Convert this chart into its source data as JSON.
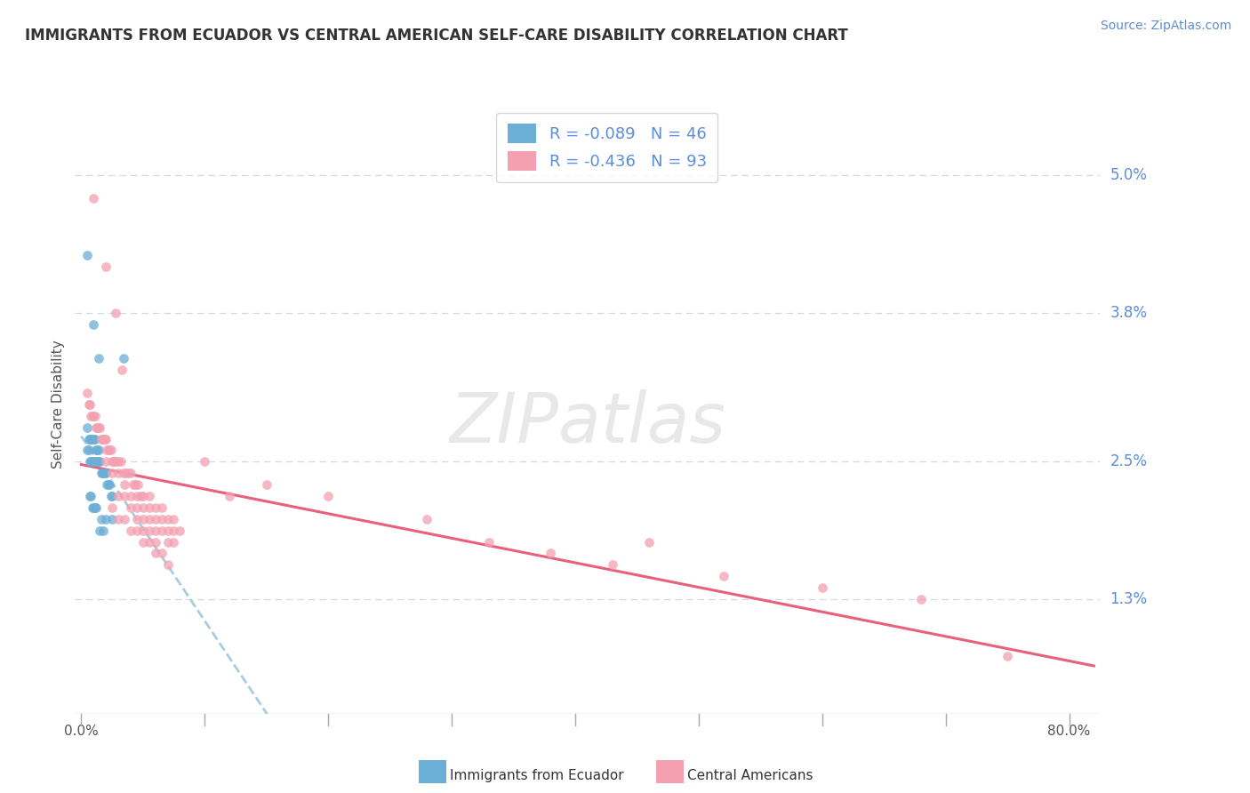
{
  "title": "IMMIGRANTS FROM ECUADOR VS CENTRAL AMERICAN SELF-CARE DISABILITY CORRELATION CHART",
  "source": "Source: ZipAtlas.com",
  "ylabel": "Self-Care Disability",
  "r1": -0.089,
  "n1": 46,
  "r2": -0.436,
  "n2": 93,
  "color1": "#6baed6",
  "color2": "#f4a0b0",
  "trendline1_color": "#a8cce0",
  "trendline2_color": "#e8607a",
  "ytick_vals": [
    0.013,
    0.025,
    0.038,
    0.05
  ],
  "ytick_labels": [
    "1.3%",
    "2.5%",
    "3.8%",
    "5.0%"
  ],
  "xlim": [
    -0.005,
    0.825
  ],
  "ylim": [
    0.003,
    0.057
  ],
  "xtick_vals": [
    0.0,
    0.1,
    0.2,
    0.3,
    0.4,
    0.5,
    0.6,
    0.7,
    0.8
  ],
  "xtick_label_show": [
    "0.0%",
    "",
    "",
    "",
    "",
    "",
    "",
    "",
    "80.0%"
  ],
  "grid_color": "#d0d8e8",
  "label1": "Immigrants from Ecuador",
  "label2": "Central Americans",
  "background_color": "#ffffff",
  "ecuador_points": [
    [
      0.005,
      0.043
    ],
    [
      0.01,
      0.037
    ],
    [
      0.014,
      0.034
    ],
    [
      0.034,
      0.034
    ],
    [
      0.005,
      0.028
    ],
    [
      0.006,
      0.027
    ],
    [
      0.007,
      0.027
    ],
    [
      0.008,
      0.027
    ],
    [
      0.009,
      0.027
    ],
    [
      0.01,
      0.027
    ],
    [
      0.011,
      0.027
    ],
    [
      0.012,
      0.026
    ],
    [
      0.013,
      0.026
    ],
    [
      0.014,
      0.026
    ],
    [
      0.005,
      0.026
    ],
    [
      0.006,
      0.026
    ],
    [
      0.007,
      0.025
    ],
    [
      0.008,
      0.025
    ],
    [
      0.009,
      0.025
    ],
    [
      0.01,
      0.025
    ],
    [
      0.011,
      0.025
    ],
    [
      0.012,
      0.025
    ],
    [
      0.013,
      0.025
    ],
    [
      0.014,
      0.025
    ],
    [
      0.015,
      0.025
    ],
    [
      0.016,
      0.024
    ],
    [
      0.017,
      0.024
    ],
    [
      0.018,
      0.024
    ],
    [
      0.019,
      0.024
    ],
    [
      0.02,
      0.024
    ],
    [
      0.021,
      0.023
    ],
    [
      0.022,
      0.023
    ],
    [
      0.023,
      0.023
    ],
    [
      0.024,
      0.022
    ],
    [
      0.025,
      0.022
    ],
    [
      0.007,
      0.022
    ],
    [
      0.008,
      0.022
    ],
    [
      0.009,
      0.021
    ],
    [
      0.01,
      0.021
    ],
    [
      0.011,
      0.021
    ],
    [
      0.012,
      0.021
    ],
    [
      0.016,
      0.02
    ],
    [
      0.02,
      0.02
    ],
    [
      0.025,
      0.02
    ],
    [
      0.015,
      0.019
    ],
    [
      0.018,
      0.019
    ]
  ],
  "central_points": [
    [
      0.01,
      0.048
    ],
    [
      0.02,
      0.042
    ],
    [
      0.028,
      0.038
    ],
    [
      0.033,
      0.033
    ],
    [
      0.005,
      0.031
    ],
    [
      0.006,
      0.03
    ],
    [
      0.007,
      0.03
    ],
    [
      0.008,
      0.029
    ],
    [
      0.009,
      0.029
    ],
    [
      0.01,
      0.029
    ],
    [
      0.011,
      0.029
    ],
    [
      0.012,
      0.028
    ],
    [
      0.013,
      0.028
    ],
    [
      0.014,
      0.028
    ],
    [
      0.015,
      0.028
    ],
    [
      0.016,
      0.027
    ],
    [
      0.017,
      0.027
    ],
    [
      0.018,
      0.027
    ],
    [
      0.019,
      0.027
    ],
    [
      0.02,
      0.027
    ],
    [
      0.021,
      0.026
    ],
    [
      0.022,
      0.026
    ],
    [
      0.023,
      0.026
    ],
    [
      0.024,
      0.026
    ],
    [
      0.025,
      0.025
    ],
    [
      0.026,
      0.025
    ],
    [
      0.027,
      0.025
    ],
    [
      0.028,
      0.025
    ],
    [
      0.03,
      0.025
    ],
    [
      0.032,
      0.025
    ],
    [
      0.034,
      0.024
    ],
    [
      0.036,
      0.024
    ],
    [
      0.038,
      0.024
    ],
    [
      0.04,
      0.024
    ],
    [
      0.042,
      0.023
    ],
    [
      0.044,
      0.023
    ],
    [
      0.046,
      0.023
    ],
    [
      0.048,
      0.022
    ],
    [
      0.02,
      0.025
    ],
    [
      0.025,
      0.024
    ],
    [
      0.03,
      0.024
    ],
    [
      0.035,
      0.023
    ],
    [
      0.04,
      0.022
    ],
    [
      0.045,
      0.022
    ],
    [
      0.05,
      0.021
    ],
    [
      0.055,
      0.021
    ],
    [
      0.06,
      0.02
    ],
    [
      0.065,
      0.02
    ],
    [
      0.07,
      0.019
    ],
    [
      0.075,
      0.019
    ],
    [
      0.05,
      0.022
    ],
    [
      0.055,
      0.022
    ],
    [
      0.06,
      0.021
    ],
    [
      0.065,
      0.021
    ],
    [
      0.07,
      0.02
    ],
    [
      0.075,
      0.02
    ],
    [
      0.08,
      0.019
    ],
    [
      0.03,
      0.022
    ],
    [
      0.035,
      0.022
    ],
    [
      0.04,
      0.021
    ],
    [
      0.045,
      0.021
    ],
    [
      0.05,
      0.02
    ],
    [
      0.055,
      0.02
    ],
    [
      0.06,
      0.019
    ],
    [
      0.065,
      0.019
    ],
    [
      0.07,
      0.018
    ],
    [
      0.075,
      0.018
    ],
    [
      0.045,
      0.02
    ],
    [
      0.05,
      0.019
    ],
    [
      0.055,
      0.019
    ],
    [
      0.06,
      0.018
    ],
    [
      0.025,
      0.021
    ],
    [
      0.03,
      0.02
    ],
    [
      0.035,
      0.02
    ],
    [
      0.04,
      0.019
    ],
    [
      0.045,
      0.019
    ],
    [
      0.05,
      0.018
    ],
    [
      0.055,
      0.018
    ],
    [
      0.06,
      0.017
    ],
    [
      0.065,
      0.017
    ],
    [
      0.07,
      0.016
    ],
    [
      0.6,
      0.014
    ],
    [
      0.68,
      0.013
    ],
    [
      0.75,
      0.008
    ],
    [
      0.43,
      0.016
    ],
    [
      0.52,
      0.015
    ],
    [
      0.38,
      0.017
    ],
    [
      0.46,
      0.018
    ],
    [
      0.33,
      0.018
    ],
    [
      0.28,
      0.02
    ],
    [
      0.2,
      0.022
    ],
    [
      0.15,
      0.023
    ],
    [
      0.1,
      0.025
    ],
    [
      0.12,
      0.022
    ]
  ]
}
